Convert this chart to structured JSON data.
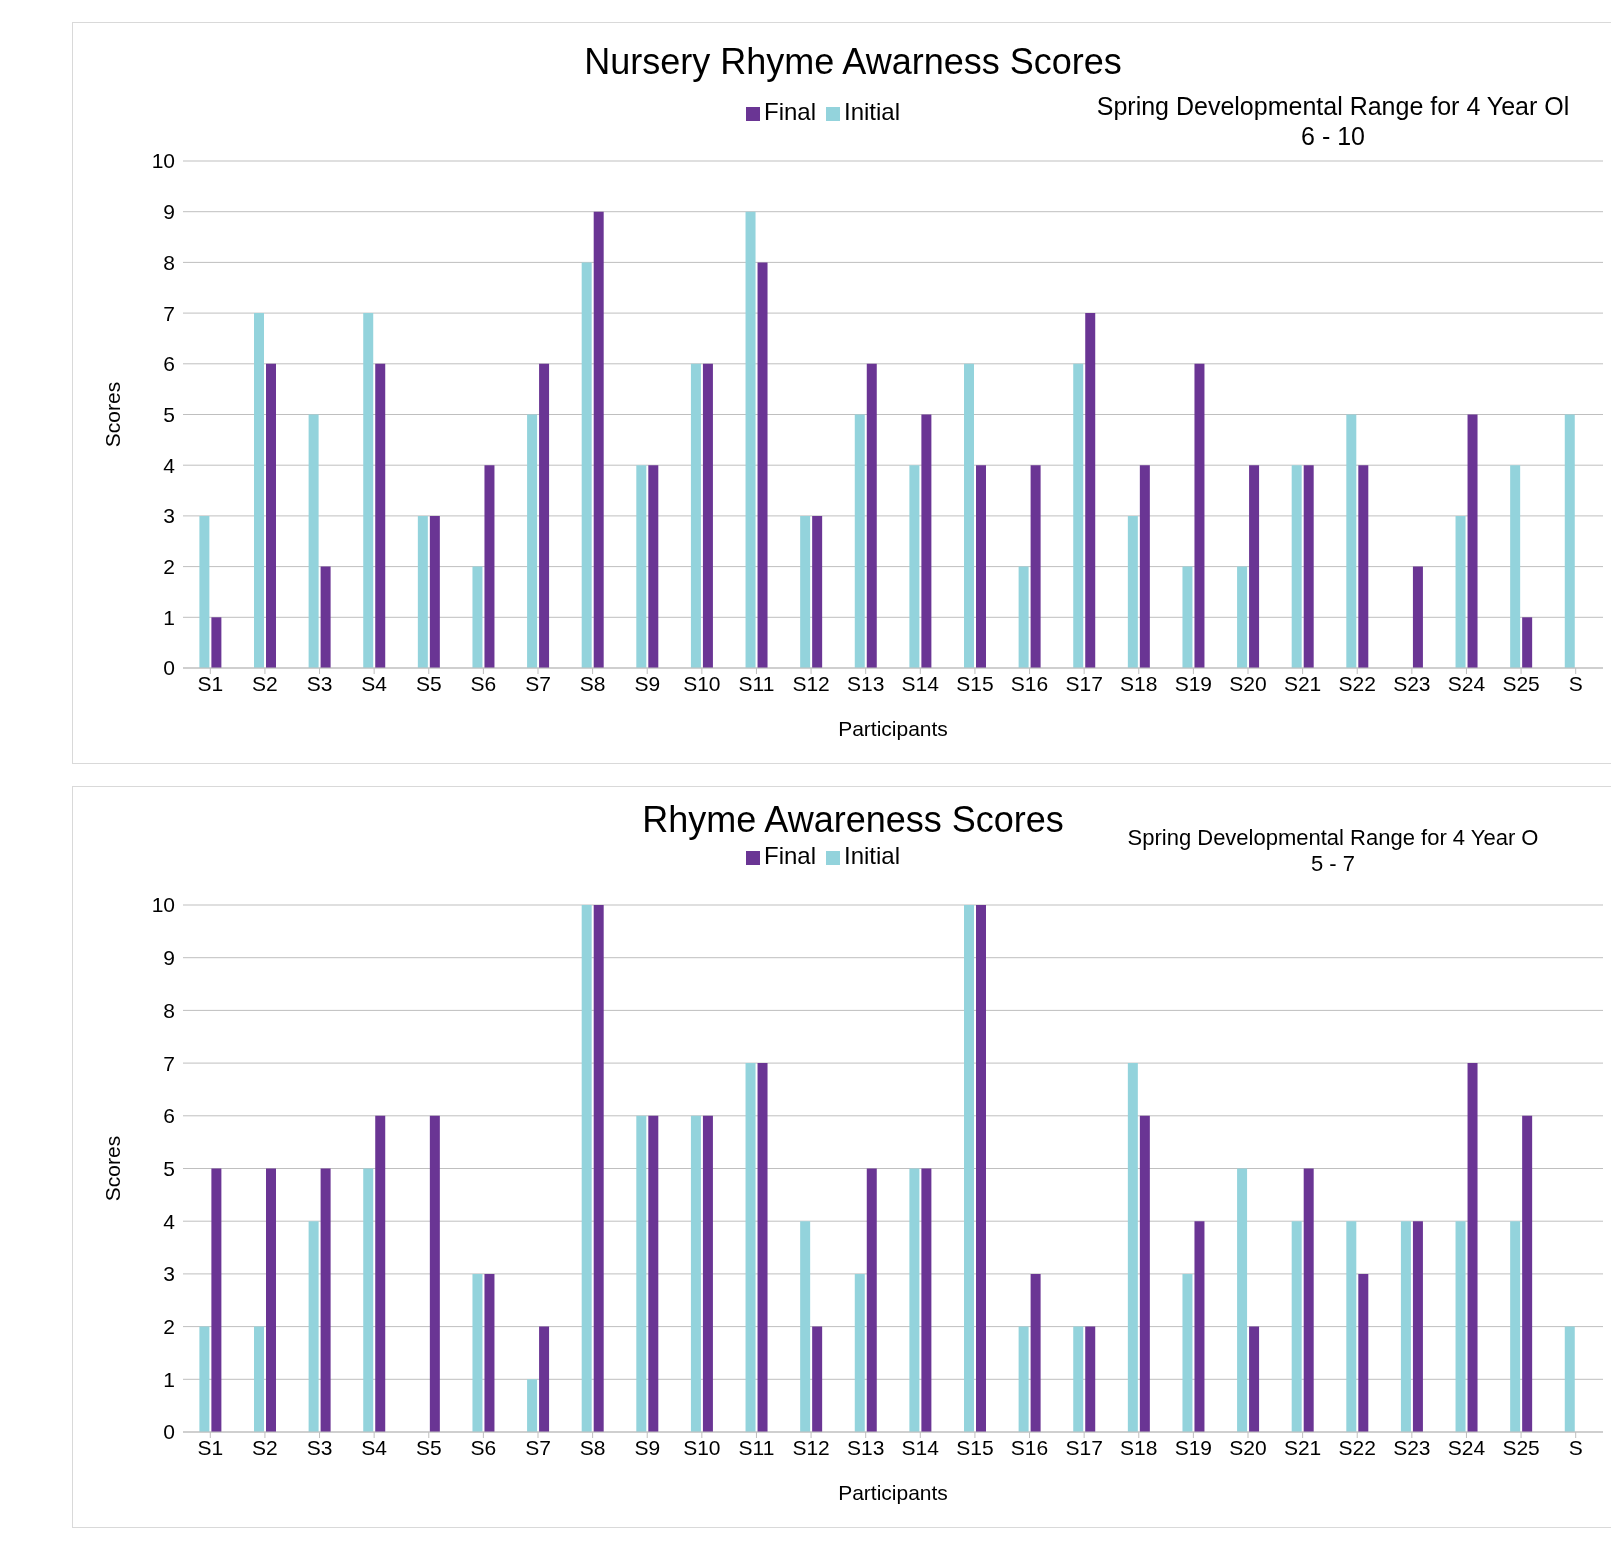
{
  "chart_data": [
    {
      "type": "bar",
      "title": "Nursery Rhyme Awarness Scores",
      "xlabel": "Participants",
      "ylabel": "Scores",
      "annotations": [
        "Spring Developmental Range for 4 Year Ol",
        "6 - 10"
      ],
      "categories": [
        "S1",
        "S2",
        "S3",
        "S4",
        "S5",
        "S6",
        "S7",
        "S8",
        "S9",
        "S10",
        "S11",
        "S12",
        "S13",
        "S14",
        "S15",
        "S16",
        "S17",
        "S18",
        "S19",
        "S20",
        "S21",
        "S22",
        "S23",
        "S24",
        "S25",
        "S"
      ],
      "series": [
        {
          "name": "Initial",
          "color": "#93d3dc",
          "values": [
            3,
            7,
            5,
            7,
            3,
            2,
            5,
            8,
            4,
            6,
            9,
            3,
            5,
            4,
            6,
            2,
            6,
            3,
            2,
            2,
            4,
            5,
            0,
            3,
            4,
            5
          ]
        },
        {
          "name": "Final",
          "color": "#6a3594",
          "values": [
            1,
            6,
            2,
            6,
            3,
            4,
            6,
            9,
            4,
            6,
            8,
            3,
            6,
            5,
            4,
            4,
            7,
            4,
            6,
            4,
            4,
            4,
            2,
            5,
            1,
            null
          ]
        }
      ],
      "ylim": [
        0,
        10
      ],
      "yticks": [
        0,
        1,
        2,
        3,
        4,
        5,
        6,
        7,
        8,
        9,
        10
      ],
      "grid": "y",
      "legend": "top"
    },
    {
      "type": "bar",
      "title": "Rhyme Awareness Scores",
      "xlabel": "Participants",
      "ylabel": "Scores",
      "annotations": [
        "Spring Developmental Range for 4 Year O",
        "5 - 7"
      ],
      "categories": [
        "S1",
        "S2",
        "S3",
        "S4",
        "S5",
        "S6",
        "S7",
        "S8",
        "S9",
        "S10",
        "S11",
        "S12",
        "S13",
        "S14",
        "S15",
        "S16",
        "S17",
        "S18",
        "S19",
        "S20",
        "S21",
        "S22",
        "S23",
        "S24",
        "S25",
        "S"
      ],
      "series": [
        {
          "name": "Initial",
          "color": "#93d3dc",
          "values": [
            2,
            2,
            4,
            5,
            0,
            3,
            1,
            10,
            6,
            6,
            7,
            4,
            3,
            5,
            10,
            2,
            2,
            7,
            3,
            5,
            4,
            4,
            4,
            4,
            4,
            2
          ]
        },
        {
          "name": "Final",
          "color": "#6a3594",
          "values": [
            5,
            5,
            5,
            6,
            6,
            3,
            2,
            10,
            6,
            6,
            7,
            2,
            5,
            5,
            10,
            3,
            2,
            6,
            4,
            2,
            5,
            3,
            4,
            7,
            6,
            null
          ]
        }
      ],
      "ylim": [
        0,
        10
      ],
      "yticks": [
        0,
        1,
        2,
        3,
        4,
        5,
        6,
        7,
        8,
        9,
        10
      ],
      "grid": "y",
      "legend": "top"
    }
  ]
}
